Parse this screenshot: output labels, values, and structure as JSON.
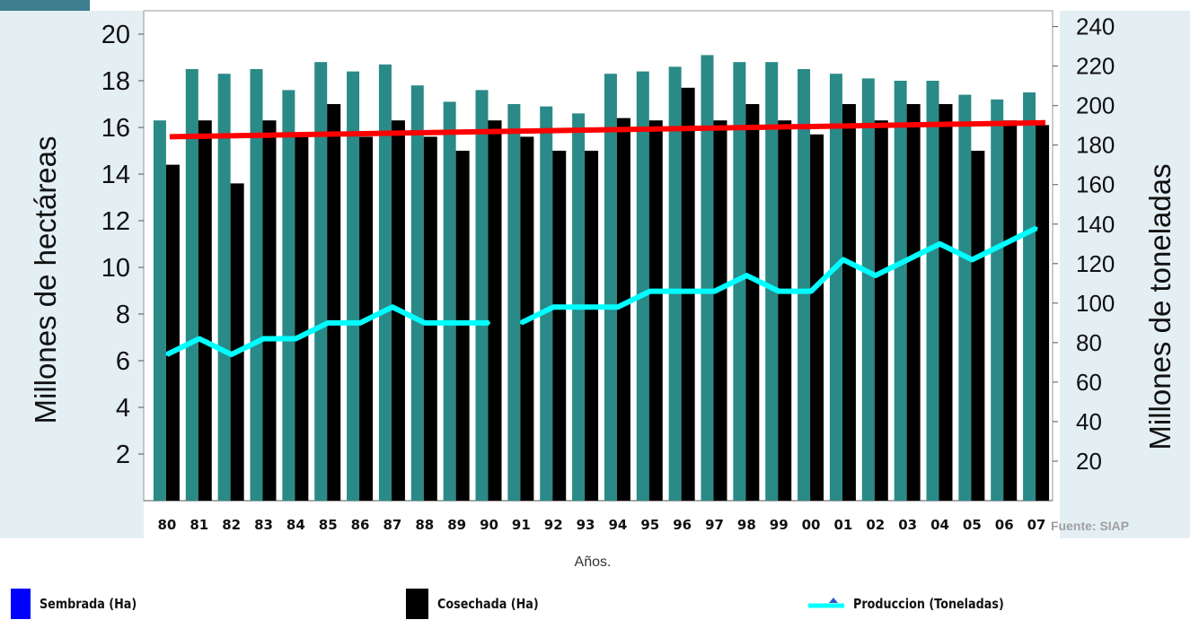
{
  "chart_data": {
    "type": "bar",
    "categories": [
      "80",
      "81",
      "82",
      "83",
      "84",
      "85",
      "86",
      "87",
      "88",
      "89",
      "90",
      "91",
      "92",
      "93",
      "94",
      "95",
      "96",
      "97",
      "98",
      "99",
      "00",
      "01",
      "02",
      "03",
      "04",
      "05",
      "06",
      "07"
    ],
    "ylabel_left": "Millones de hectáreas",
    "ylabel_right": "Millones de toneladas",
    "xlabel": "Años.",
    "source": "Fuente: SIAP",
    "ylim_left": [
      0,
      21
    ],
    "ylim_right": [
      0,
      248
    ],
    "yticks_left": [
      2,
      4,
      6,
      8,
      10,
      12,
      14,
      16,
      18,
      20
    ],
    "yticks_right": [
      20,
      40,
      60,
      80,
      100,
      120,
      140,
      160,
      180,
      200,
      220,
      240
    ],
    "series": [
      {
        "name": "Sembrada (Ha)",
        "axis": "left",
        "type": "bar",
        "color": "#2a8a88",
        "values": [
          16.3,
          18.5,
          18.3,
          18.5,
          17.6,
          18.8,
          18.4,
          18.7,
          17.8,
          17.1,
          17.6,
          17.0,
          16.9,
          16.6,
          18.3,
          18.4,
          18.6,
          19.1,
          18.8,
          18.8,
          18.5,
          18.3,
          18.1,
          18.0,
          18.0,
          17.4,
          17.2,
          17.5
        ]
      },
      {
        "name": "Cosechada (Ha)",
        "axis": "left",
        "type": "bar",
        "color": "#000000",
        "values": [
          14.4,
          16.3,
          13.6,
          16.3,
          15.6,
          17.0,
          15.6,
          16.3,
          15.6,
          15.0,
          16.3,
          15.6,
          15.0,
          15.0,
          16.4,
          16.3,
          17.7,
          16.3,
          17.0,
          16.3,
          15.7,
          17.0,
          16.3,
          17.0,
          17.0,
          15.0,
          16.3,
          16.1
        ]
      },
      {
        "name": "Produccion (Toneladas)",
        "axis": "right",
        "type": "line",
        "color": "#00ffff",
        "values": [
          74,
          82,
          74,
          82,
          82,
          90,
          90,
          98,
          90,
          90,
          90,
          90,
          98,
          98,
          98,
          106,
          106,
          106,
          114,
          106,
          106,
          122,
          114,
          122,
          130,
          122,
          130,
          138
        ],
        "gaps": [
          [
            10,
            11
          ]
        ]
      }
    ],
    "trend": {
      "axis": "left",
      "color": "#ff0000",
      "start": 15.6,
      "end": 16.2
    },
    "legend_location": "bottom",
    "legend_swatch_colors": [
      "#0000ff",
      "#000000",
      "#00ffff"
    ]
  }
}
